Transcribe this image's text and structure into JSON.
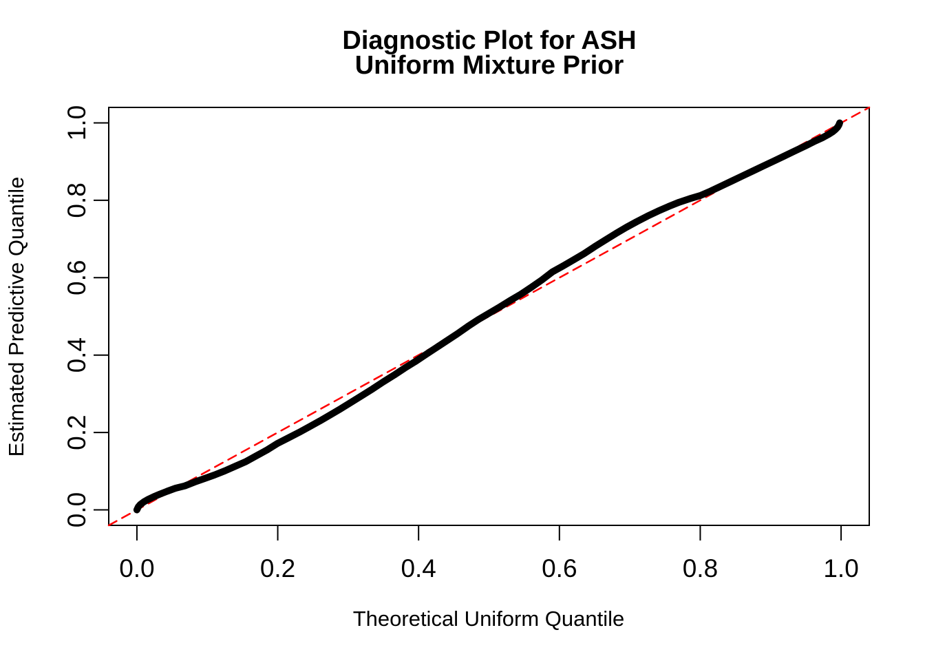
{
  "figure": {
    "title_line1": "Diagnostic Plot for ASH",
    "title_line2": "Uniform Mixture Prior",
    "xlabel": "Theoretical Uniform Quantile",
    "ylabel": "Estimated Predictive Quantile"
  },
  "colors": {
    "background": "#FFFFFF",
    "foreground": "#000000",
    "reference_line": "#FF0000"
  },
  "chart_data": {
    "type": "line",
    "title": "Diagnostic Plot for ASH\nUniform Mixture Prior",
    "xlabel": "Theoretical Uniform Quantile",
    "ylabel": "Estimated Predictive Quantile",
    "xlim": [
      -0.04,
      1.04
    ],
    "ylim": [
      -0.04,
      1.04
    ],
    "grid": false,
    "legend": null,
    "x_ticks": {
      "values": [
        0.0,
        0.2,
        0.4,
        0.6,
        0.8,
        1.0
      ],
      "labels": [
        "0.0",
        "0.2",
        "0.4",
        "0.6",
        "0.8",
        "1.0"
      ]
    },
    "y_ticks": {
      "values": [
        0.0,
        0.2,
        0.4,
        0.6,
        0.8,
        1.0
      ],
      "labels": [
        "0.0",
        "0.2",
        "0.4",
        "0.6",
        "0.8",
        "1.0"
      ]
    },
    "series": [
      {
        "name": "estimated-predictive-quantiles",
        "type": "line",
        "color": "#000000",
        "line_width": 10,
        "style": "solid",
        "points": [
          [
            0.0,
            0.0
          ],
          [
            0.002,
            0.008
          ],
          [
            0.005,
            0.014
          ],
          [
            0.01,
            0.021
          ],
          [
            0.016,
            0.027
          ],
          [
            0.024,
            0.034
          ],
          [
            0.033,
            0.041
          ],
          [
            0.043,
            0.048
          ],
          [
            0.055,
            0.056
          ],
          [
            0.068,
            0.062
          ],
          [
            0.082,
            0.072
          ],
          [
            0.096,
            0.081
          ],
          [
            0.11,
            0.09
          ],
          [
            0.125,
            0.101
          ],
          [
            0.14,
            0.113
          ],
          [
            0.155,
            0.125
          ],
          [
            0.17,
            0.14
          ],
          [
            0.185,
            0.155
          ],
          [
            0.2,
            0.172
          ],
          [
            0.215,
            0.186
          ],
          [
            0.23,
            0.2
          ],
          [
            0.245,
            0.215
          ],
          [
            0.26,
            0.23
          ],
          [
            0.275,
            0.246
          ],
          [
            0.29,
            0.262
          ],
          [
            0.305,
            0.279
          ],
          [
            0.32,
            0.296
          ],
          [
            0.335,
            0.313
          ],
          [
            0.35,
            0.331
          ],
          [
            0.365,
            0.348
          ],
          [
            0.38,
            0.366
          ],
          [
            0.395,
            0.383
          ],
          [
            0.41,
            0.401
          ],
          [
            0.425,
            0.419
          ],
          [
            0.44,
            0.437
          ],
          [
            0.455,
            0.455
          ],
          [
            0.47,
            0.474
          ],
          [
            0.485,
            0.492
          ],
          [
            0.5,
            0.508
          ],
          [
            0.515,
            0.524
          ],
          [
            0.53,
            0.541
          ],
          [
            0.545,
            0.557
          ],
          [
            0.56,
            0.575
          ],
          [
            0.575,
            0.594
          ],
          [
            0.59,
            0.615
          ],
          [
            0.605,
            0.63
          ],
          [
            0.62,
            0.646
          ],
          [
            0.635,
            0.662
          ],
          [
            0.65,
            0.68
          ],
          [
            0.665,
            0.697
          ],
          [
            0.68,
            0.714
          ],
          [
            0.695,
            0.73
          ],
          [
            0.71,
            0.745
          ],
          [
            0.725,
            0.759
          ],
          [
            0.74,
            0.772
          ],
          [
            0.755,
            0.784
          ],
          [
            0.77,
            0.795
          ],
          [
            0.785,
            0.804
          ],
          [
            0.8,
            0.812
          ],
          [
            0.815,
            0.824
          ],
          [
            0.83,
            0.837
          ],
          [
            0.845,
            0.85
          ],
          [
            0.86,
            0.863
          ],
          [
            0.875,
            0.876
          ],
          [
            0.89,
            0.889
          ],
          [
            0.905,
            0.902
          ],
          [
            0.92,
            0.915
          ],
          [
            0.935,
            0.928
          ],
          [
            0.95,
            0.941
          ],
          [
            0.963,
            0.953
          ],
          [
            0.974,
            0.962
          ],
          [
            0.982,
            0.97
          ],
          [
            0.988,
            0.977
          ],
          [
            0.992,
            0.983
          ],
          [
            0.995,
            0.989
          ],
          [
            0.997,
            0.995
          ],
          [
            0.998,
            1.0
          ]
        ]
      },
      {
        "name": "identity-reference-line",
        "type": "line",
        "color": "#FF0000",
        "line_width": 2.5,
        "style": "dashed",
        "points": [
          [
            -0.04,
            -0.04
          ],
          [
            1.04,
            1.04
          ]
        ]
      }
    ]
  }
}
